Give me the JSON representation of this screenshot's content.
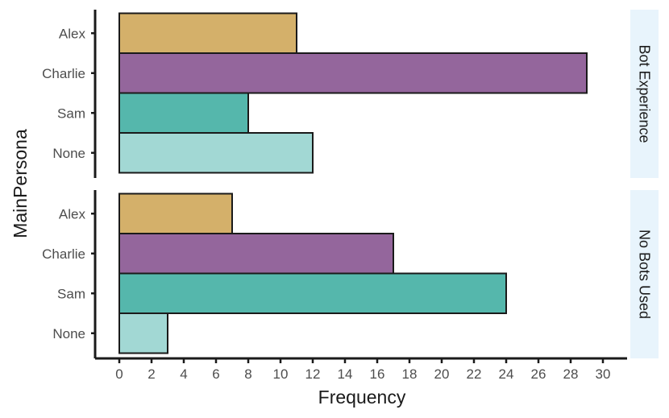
{
  "chart_data": {
    "type": "bar",
    "orientation": "horizontal",
    "xlabel": "Frequency",
    "ylabel": "MainPersona",
    "xlim": [
      0,
      30
    ],
    "x_ticks": [
      0,
      2,
      4,
      6,
      8,
      10,
      12,
      14,
      16,
      18,
      20,
      22,
      24,
      26,
      28,
      30
    ],
    "grid": false,
    "legend": "none",
    "categories": [
      "Alex",
      "Charlie",
      "Sam",
      "None"
    ],
    "category_colors": {
      "Alex": "#d4b06a",
      "Charlie": "#94669c",
      "Sam": "#55b7ac",
      "None": "#a2d8d4"
    },
    "strip_color": "#e8f4fc",
    "panels": [
      {
        "strip": "Bot Experience",
        "values": [
          11,
          29,
          8,
          12
        ]
      },
      {
        "strip": "No Bots Used",
        "values": [
          7,
          17,
          24,
          3
        ]
      }
    ]
  }
}
